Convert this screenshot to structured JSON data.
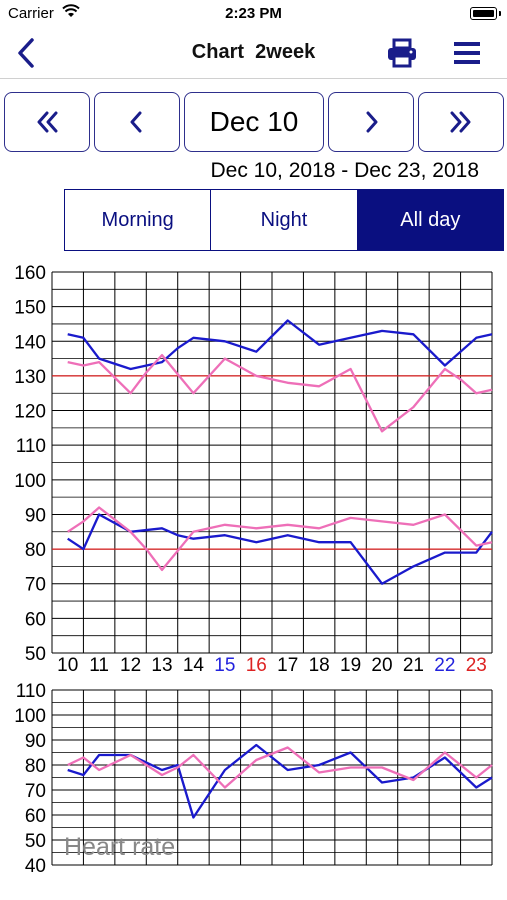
{
  "status": {
    "carrier": "Carrier",
    "time": "2:23 PM"
  },
  "nav": {
    "title": "Chart  2week"
  },
  "pager": {
    "date": "Dec 10"
  },
  "range": "Dec 10, 2018 - Dec 23, 2018",
  "tabs": [
    {
      "label": "Morning"
    },
    {
      "label": "Night"
    },
    {
      "label": "All day"
    }
  ],
  "selected_tab": "All day",
  "colors": {
    "accent": "#0a0f80",
    "systolic_line": "#1a1acc",
    "secondary_line": "#ee6fb8",
    "reference": "#dd2222",
    "saturday": "#2222dd",
    "sunday": "#dd2222"
  },
  "icons": [
    "back-icon",
    "print-icon",
    "menu-icon",
    "double-chevron-left-icon",
    "chevron-left-icon",
    "chevron-right-icon",
    "double-chevron-right-icon",
    "wifi-icon",
    "battery-icon"
  ],
  "chart_data": [
    {
      "type": "line",
      "title": "",
      "x": [
        "10",
        "11",
        "12",
        "13",
        "14",
        "15",
        "16",
        "17",
        "18",
        "19",
        "20",
        "21",
        "22",
        "23"
      ],
      "ylim": [
        50,
        160
      ],
      "yticks": [
        50,
        60,
        70,
        80,
        90,
        100,
        110,
        120,
        130,
        140,
        150,
        160
      ],
      "reference_lines": [
        130,
        80
      ],
      "grid": true,
      "series": [
        {
          "color": "#1a1acc",
          "x": [
            10,
            10.5,
            11,
            12,
            13,
            13.5,
            14,
            15,
            16,
            17,
            18,
            19,
            20,
            21,
            22,
            23,
            23.5
          ],
          "y": [
            142,
            141,
            135,
            132,
            134,
            138,
            141,
            140,
            137,
            146,
            139,
            141,
            143,
            142,
            133,
            141,
            142
          ]
        },
        {
          "color": "#ee6fb8",
          "x": [
            10,
            10.5,
            11,
            12,
            12.5,
            13,
            14,
            15,
            16,
            17,
            18,
            19,
            20,
            21,
            22,
            22.5,
            23,
            23.5
          ],
          "y": [
            134,
            133,
            134,
            125,
            131,
            136,
            125,
            135,
            130,
            128,
            127,
            132,
            114,
            121,
            132,
            129,
            125,
            126
          ]
        },
        {
          "color": "#1a1acc",
          "x": [
            10,
            10.5,
            11,
            12,
            13,
            13.5,
            14,
            15,
            16,
            17,
            18,
            19,
            20,
            21,
            22,
            23,
            23.5
          ],
          "y": [
            83,
            80,
            90,
            85,
            86,
            84,
            83,
            84,
            82,
            84,
            82,
            82,
            70,
            75,
            79,
            79,
            85
          ]
        },
        {
          "color": "#ee6fb8",
          "x": [
            10,
            10.5,
            11,
            12,
            12.5,
            13,
            14,
            15,
            16,
            17,
            18,
            19,
            20,
            21,
            22,
            23,
            23.5
          ],
          "y": [
            85,
            88,
            92,
            85,
            80,
            74,
            85,
            87,
            86,
            87,
            86,
            89,
            88,
            87,
            90,
            81,
            82
          ]
        }
      ]
    },
    {
      "type": "line",
      "title": "Heart rate",
      "x": [
        "10",
        "11",
        "12",
        "13",
        "14",
        "15",
        "16",
        "17",
        "18",
        "19",
        "20",
        "21",
        "22",
        "23"
      ],
      "ylim": [
        40,
        110
      ],
      "yticks": [
        40,
        50,
        60,
        70,
        80,
        90,
        100,
        110
      ],
      "grid": true,
      "series": [
        {
          "color": "#1a1acc",
          "x": [
            10,
            10.5,
            11,
            12,
            13,
            13.5,
            14,
            15,
            16,
            17,
            18,
            19,
            20,
            21,
            22,
            23,
            23.5
          ],
          "y": [
            78,
            76,
            84,
            84,
            78,
            80,
            59,
            78,
            88,
            78,
            80,
            85,
            73,
            75,
            83,
            71,
            75
          ]
        },
        {
          "color": "#ee6fb8",
          "x": [
            10,
            10.5,
            11,
            12,
            13,
            13.5,
            14,
            15,
            16,
            17,
            18,
            19,
            20,
            21,
            22,
            23,
            23.5
          ],
          "y": [
            80,
            83,
            78,
            84,
            76,
            79,
            84,
            71,
            82,
            87,
            77,
            79,
            79,
            74,
            85,
            75,
            80
          ]
        }
      ]
    }
  ]
}
